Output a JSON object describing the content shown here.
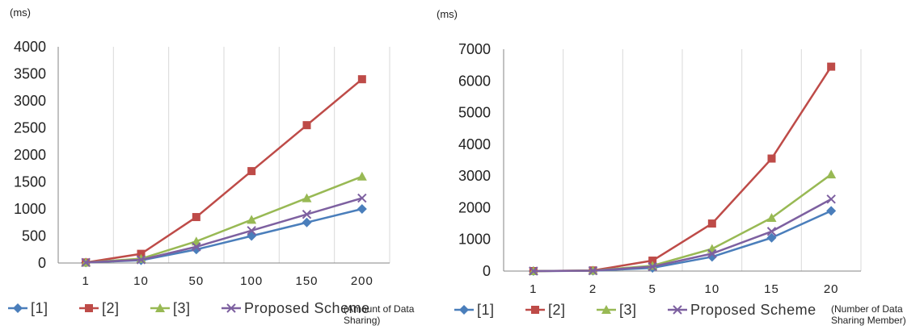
{
  "chart_data": [
    {
      "type": "line",
      "unit_label": "(ms)",
      "xlabel_lines": [
        "(Amount of Data",
        "Sharing)"
      ],
      "categories": [
        "1",
        "10",
        "50",
        "100",
        "150",
        "200"
      ],
      "ylim": [
        0,
        4000
      ],
      "yticks": [
        0,
        500,
        1000,
        1500,
        2000,
        2500,
        3000,
        3500,
        4000
      ],
      "series": [
        {
          "name": "[1]",
          "color": "#4a7ebb",
          "marker": "diamond",
          "values": [
            10,
            50,
            250,
            500,
            750,
            1000
          ]
        },
        {
          "name": "[2]",
          "color": "#be4b48",
          "marker": "square",
          "values": [
            10,
            170,
            850,
            1700,
            2550,
            3400
          ]
        },
        {
          "name": "[3]",
          "color": "#98b954",
          "marker": "triangle",
          "values": [
            10,
            80,
            400,
            800,
            1200,
            1600
          ]
        },
        {
          "name": "Proposed Scheme",
          "color": "#7d60a0",
          "marker": "x",
          "values": [
            10,
            60,
            300,
            600,
            900,
            1200
          ]
        }
      ],
      "grid": "vertical"
    },
    {
      "type": "line",
      "unit_label": "(ms)",
      "xlabel_lines": [
        "(Number of Data",
        "Sharing Member)"
      ],
      "categories": [
        "1",
        "2",
        "5",
        "10",
        "15",
        "20"
      ],
      "ylim": [
        0,
        7000
      ],
      "yticks": [
        0,
        1000,
        2000,
        3000,
        4000,
        5000,
        6000,
        7000
      ],
      "series": [
        {
          "name": "[1]",
          "color": "#4a7ebb",
          "marker": "diamond",
          "values": [
            0,
            10,
            100,
            450,
            1050,
            1900
          ]
        },
        {
          "name": "[2]",
          "color": "#be4b48",
          "marker": "square",
          "values": [
            0,
            20,
            330,
            1500,
            3550,
            6450
          ]
        },
        {
          "name": "[3]",
          "color": "#98b954",
          "marker": "triangle",
          "values": [
            0,
            15,
            170,
            700,
            1680,
            3050
          ]
        },
        {
          "name": "Proposed Scheme",
          "color": "#7d60a0",
          "marker": "x",
          "values": [
            0,
            12,
            140,
            550,
            1250,
            2270
          ]
        }
      ],
      "grid": "vertical"
    }
  ]
}
